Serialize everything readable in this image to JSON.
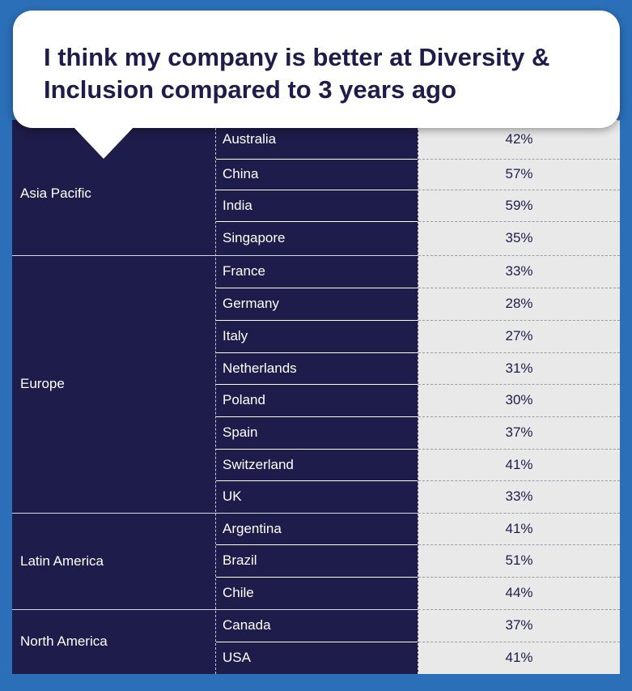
{
  "chart_data": {
    "type": "table",
    "title": "I think my company is better at Diversity & Inclusion compared to 3 years ago",
    "regions": [
      {
        "name": "Asia Pacific",
        "rows": [
          {
            "country": "Australia",
            "value": "42%"
          },
          {
            "country": "China",
            "value": "57%"
          },
          {
            "country": "India",
            "value": "59%"
          },
          {
            "country": "Singapore",
            "value": "35%"
          }
        ]
      },
      {
        "name": "Europe",
        "rows": [
          {
            "country": "France",
            "value": "33%"
          },
          {
            "country": "Germany",
            "value": "28%"
          },
          {
            "country": "Italy",
            "value": "27%"
          },
          {
            "country": "Netherlands",
            "value": "31%"
          },
          {
            "country": "Poland",
            "value": "30%"
          },
          {
            "country": "Spain",
            "value": "37%"
          },
          {
            "country": "Switzerland",
            "value": "41%"
          },
          {
            "country": "UK",
            "value": "33%"
          }
        ]
      },
      {
        "name": "Latin America",
        "rows": [
          {
            "country": "Argentina",
            "value": "41%"
          },
          {
            "country": "Brazil",
            "value": "51%"
          },
          {
            "country": "Chile",
            "value": "44%"
          }
        ]
      },
      {
        "name": "North America",
        "rows": [
          {
            "country": "Canada",
            "value": "37%"
          },
          {
            "country": "USA",
            "value": "41%"
          }
        ]
      }
    ]
  },
  "colors": {
    "background": "#2a6fb8",
    "table_dark": "#1e1c4a",
    "value_cell": "#e9e9ea",
    "bubble": "#ffffff"
  }
}
